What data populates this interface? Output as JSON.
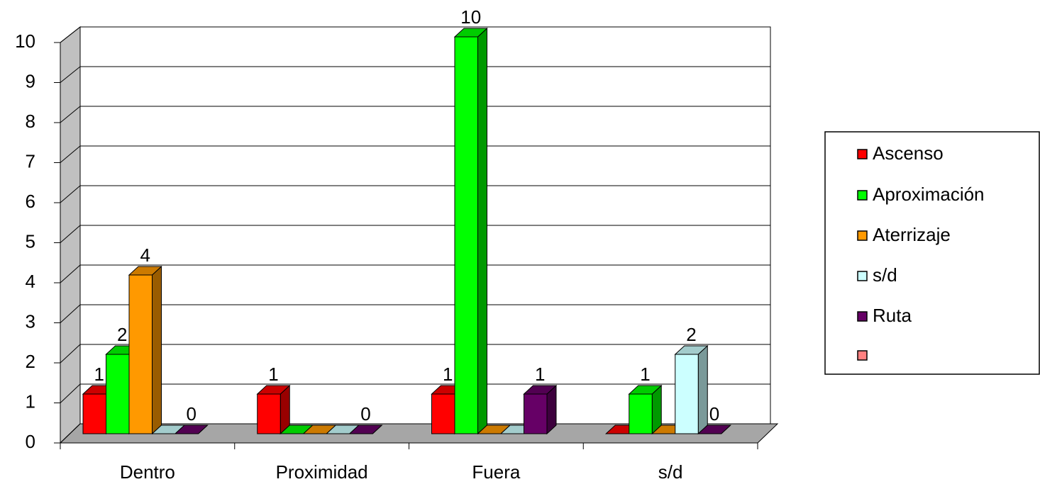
{
  "chart_data": {
    "type": "bar3d",
    "categories": [
      "Dentro",
      "Proximidad",
      "Fuera",
      "s/d"
    ],
    "series": [
      {
        "name": "Ascenso",
        "color": "#ff0000",
        "values": [
          1,
          1,
          1,
          0
        ],
        "value_labels": [
          "1",
          "1",
          "1",
          null
        ]
      },
      {
        "name": "Aproximación",
        "color": "#00ff00",
        "values": [
          2,
          0,
          10,
          1
        ],
        "value_labels": [
          "2",
          null,
          "10",
          "1"
        ]
      },
      {
        "name": "Aterrizaje",
        "color": "#ff9900",
        "values": [
          4,
          0,
          0,
          0
        ],
        "value_labels": [
          "4",
          null,
          null,
          null
        ]
      },
      {
        "name": "s/d",
        "color": "#ccffff",
        "values": [
          0,
          0,
          0,
          2
        ],
        "value_labels": [
          null,
          null,
          null,
          "2"
        ]
      },
      {
        "name": "Ruta",
        "color": "#660066",
        "values": [
          0,
          0,
          1,
          0
        ],
        "value_labels": [
          "0",
          "0",
          "1",
          "0"
        ]
      },
      {
        "name": null,
        "color": "#ff8080",
        "values": [
          null,
          null,
          null,
          null
        ]
      }
    ],
    "ylim": [
      0,
      10
    ],
    "yticks": [
      0,
      1,
      2,
      3,
      4,
      5,
      6,
      7,
      8,
      9,
      10
    ],
    "grid": true,
    "legend": "right"
  }
}
